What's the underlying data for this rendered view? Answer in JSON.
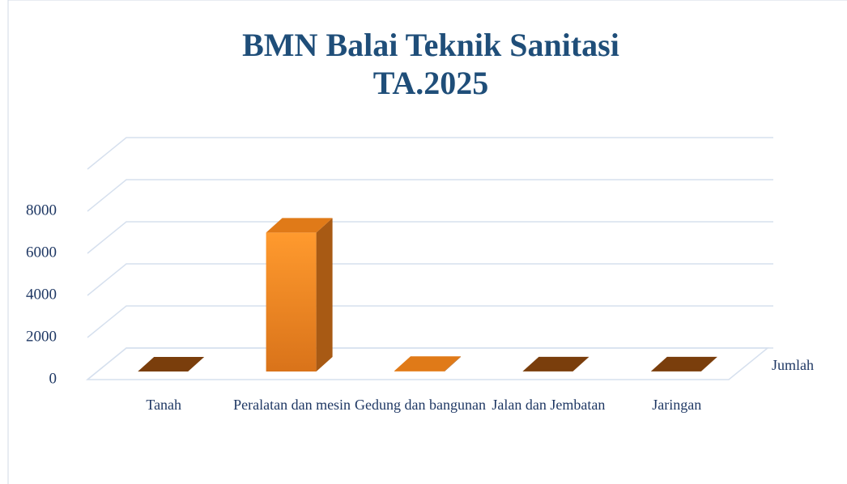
{
  "chart_data": {
    "type": "bar3d",
    "title": [
      "BMN Balai Teknik Sanitasi",
      "TA.2025"
    ],
    "categories": [
      "Tanah",
      "Peralatan dan mesin",
      "Gedung dan bangunan",
      "Jalan dan Jembatan",
      "Jaringan"
    ],
    "series": [
      {
        "name": "Jumlah",
        "color": "#f28c1e",
        "values": [
          1,
          6600,
          30,
          5,
          5
        ]
      }
    ],
    "ylim": [
      0,
      10000
    ],
    "yticks": [
      0,
      2000,
      4000,
      6000,
      8000
    ],
    "grid": true,
    "legend": "right"
  }
}
